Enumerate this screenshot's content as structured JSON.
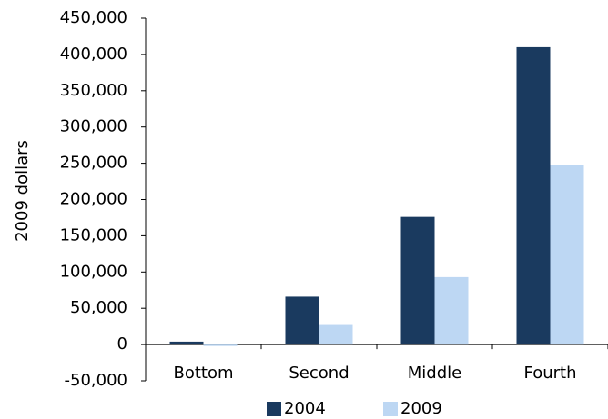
{
  "chart_data": {
    "type": "bar",
    "title": "",
    "xlabel": "",
    "ylabel": "2009 dollars",
    "categories": [
      "Bottom",
      "Second",
      "Middle",
      "Fourth"
    ],
    "series": [
      {
        "name": "2004",
        "color": "#1a3a5f",
        "values": [
          4000,
          66000,
          176000,
          410000
        ]
      },
      {
        "name": "2009",
        "color": "#bdd7f3",
        "values": [
          -2000,
          27000,
          93000,
          247000
        ]
      }
    ],
    "ylim": [
      -50000,
      450000
    ],
    "yticks": [
      -50000,
      0,
      50000,
      100000,
      150000,
      200000,
      250000,
      300000,
      350000,
      400000,
      450000
    ],
    "ytick_labels": [
      "-50,000",
      "0",
      "50,000",
      "100,000",
      "150,000",
      "200,000",
      "250,000",
      "300,000",
      "350,000",
      "400,000",
      "450,000"
    ],
    "grid": false,
    "legend_position": "bottom"
  }
}
